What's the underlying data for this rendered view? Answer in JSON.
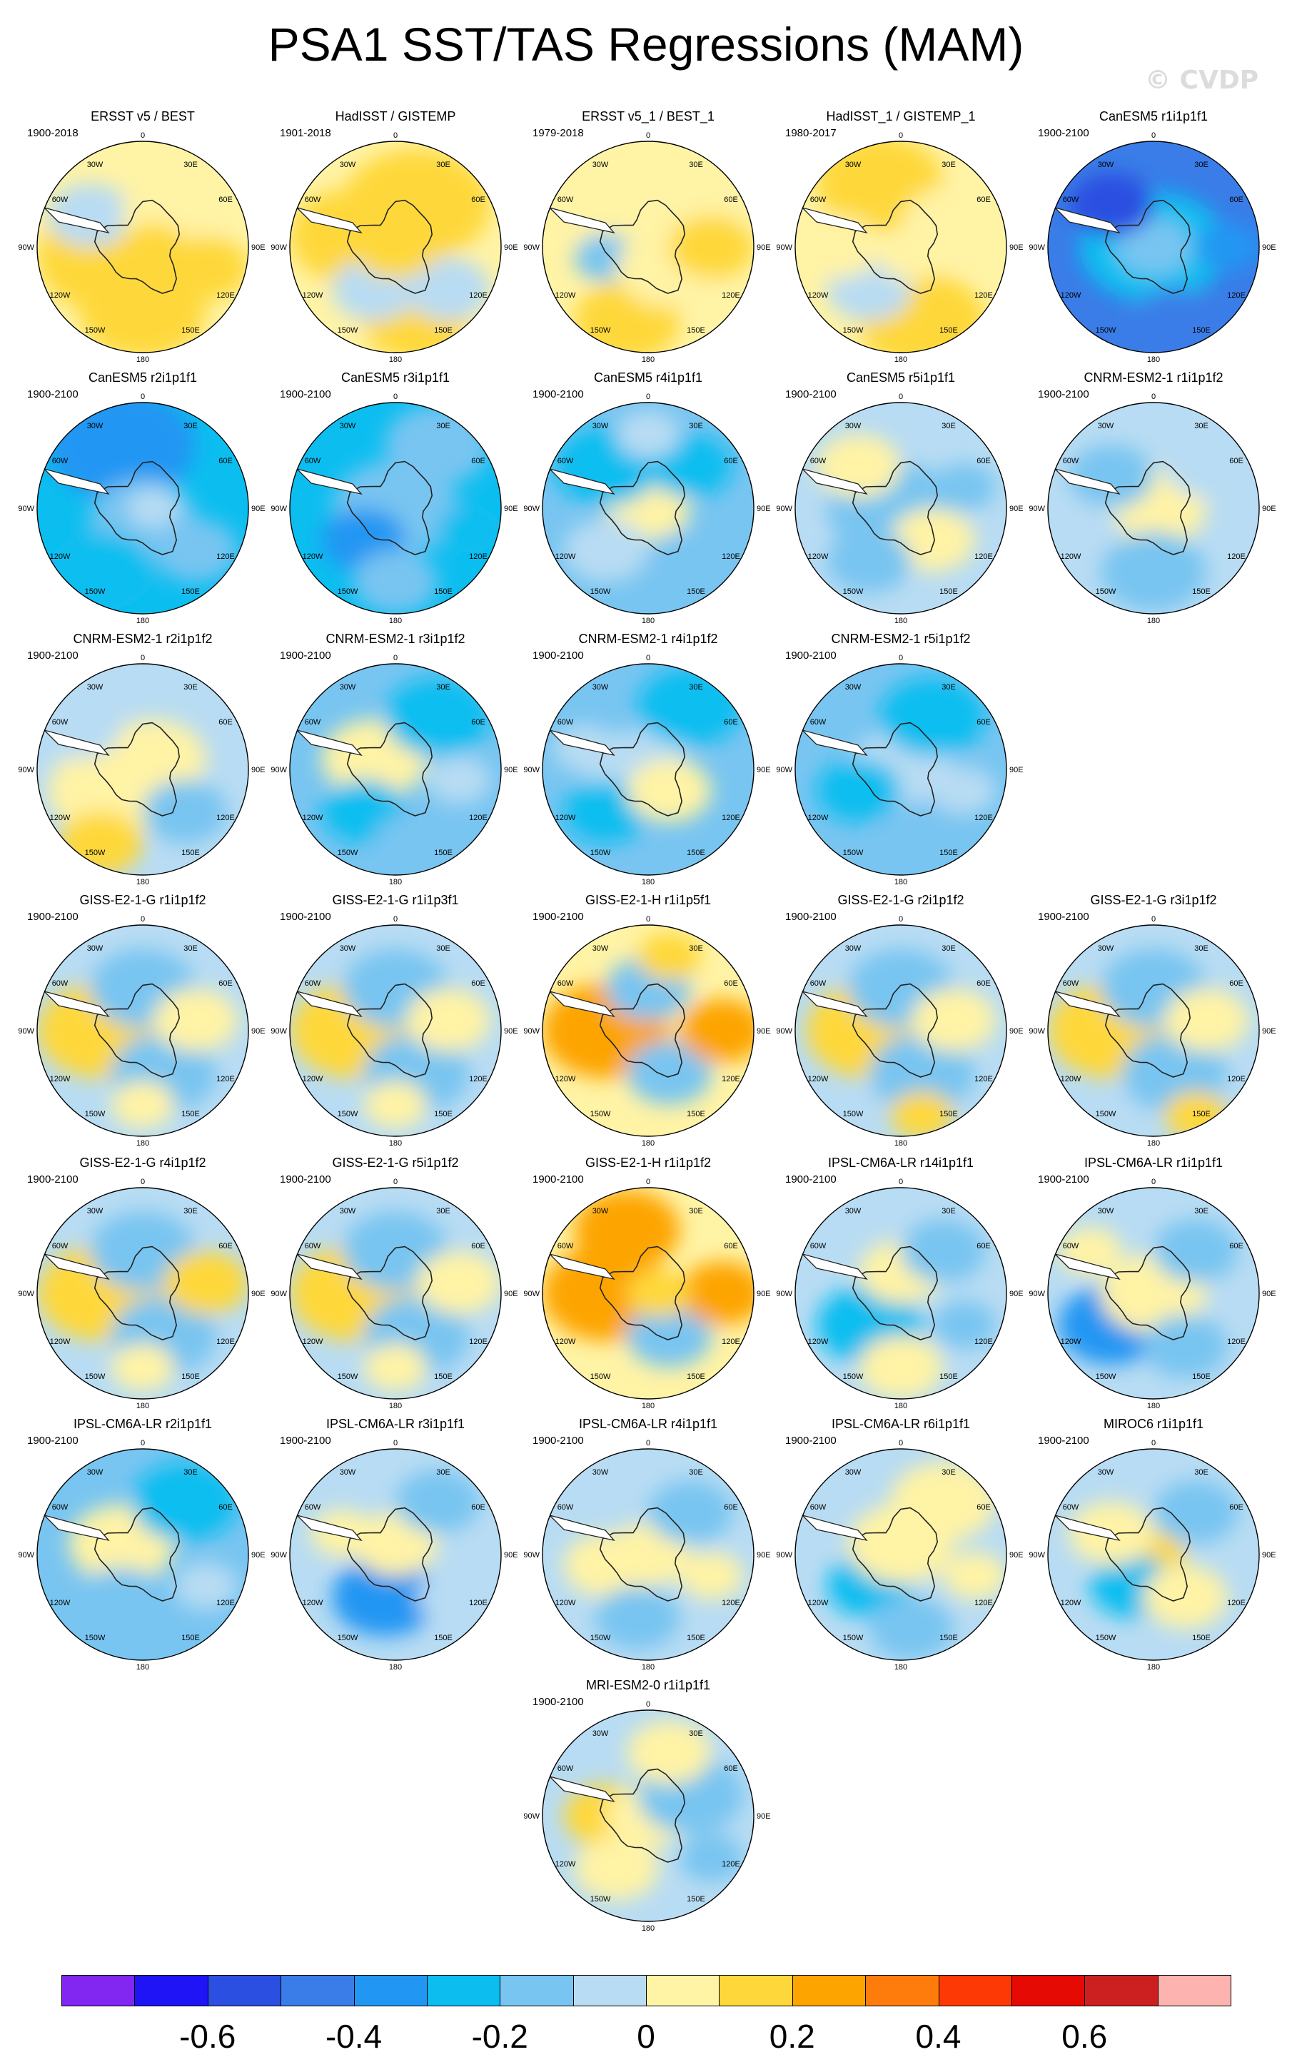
{
  "title": "PSA1 SST/TAS Regressions (MAM)",
  "watermark": "© CVDP",
  "lon_labels": {
    "top": "0",
    "upper_right": "30E",
    "right_high": "60E",
    "right": "90E",
    "right_low": "120E",
    "lower_right": "150E",
    "bottom": "180",
    "lower_left": "150W",
    "left_low": "120W",
    "left": "90W",
    "left_high": "60W",
    "upper_left": "30W"
  },
  "colors": {
    "levels": [
      "#8226f2",
      "#1e14f5",
      "#2b50e1",
      "#3a7de8",
      "#2196f3",
      "#0cbef0",
      "#78c5f1",
      "#b8dcf3",
      "#fff3a5",
      "#fed83a",
      "#fda401",
      "#fd7c0b",
      "#fd3a06",
      "#e60a05",
      "#cc2020",
      "#fdb3b0"
    ],
    "land_outline": "#222222",
    "ocean_frame": "#000000"
  },
  "colorbar": {
    "tick_labels": [
      "-0.6",
      "-0.4",
      "-0.2",
      "0",
      "0.2",
      "0.4",
      "0.6"
    ],
    "tick_positions": [
      2,
      4,
      6,
      8,
      10,
      12,
      14
    ]
  },
  "panels": [
    {
      "title": "ERSST v5 / BEST",
      "years": "1900-2018",
      "base": 8,
      "features": [
        [
          0.35,
          0.55,
          0.35,
          9
        ],
        [
          0.5,
          0.8,
          0.3,
          9
        ],
        [
          0.25,
          0.35,
          0.2,
          7
        ],
        [
          0.65,
          0.35,
          0.25,
          8
        ],
        [
          0.8,
          0.6,
          0.2,
          9
        ],
        [
          0.55,
          0.5,
          0.15,
          9
        ]
      ]
    },
    {
      "title": "HadISST / GISTEMP",
      "years": "1901-2018",
      "base": 8,
      "features": [
        [
          0.6,
          0.3,
          0.35,
          9
        ],
        [
          0.3,
          0.45,
          0.3,
          9
        ],
        [
          0.6,
          0.85,
          0.25,
          9
        ],
        [
          0.75,
          0.7,
          0.2,
          7
        ],
        [
          0.4,
          0.7,
          0.2,
          7
        ],
        [
          0.5,
          0.5,
          0.2,
          9
        ]
      ]
    },
    {
      "title": "ERSST v5_1 / BEST_1",
      "years": "1979-2018",
      "base": 8,
      "features": [
        [
          0.3,
          0.3,
          0.3,
          8
        ],
        [
          0.7,
          0.3,
          0.3,
          8
        ],
        [
          0.4,
          0.85,
          0.25,
          9
        ],
        [
          0.3,
          0.55,
          0.15,
          6
        ],
        [
          0.6,
          0.6,
          0.25,
          8
        ],
        [
          0.8,
          0.5,
          0.2,
          9
        ]
      ]
    },
    {
      "title": "HadISST_1 / GISTEMP_1",
      "years": "1980-2017",
      "base": 8,
      "features": [
        [
          0.4,
          0.2,
          0.3,
          9
        ],
        [
          0.75,
          0.4,
          0.25,
          8
        ],
        [
          0.6,
          0.85,
          0.3,
          9
        ],
        [
          0.35,
          0.7,
          0.2,
          7
        ],
        [
          0.2,
          0.5,
          0.2,
          8
        ],
        [
          0.55,
          0.55,
          0.15,
          8
        ]
      ]
    },
    {
      "title": "CanESM5 r1i1p1f1",
      "years": "1900-2100",
      "base": 3,
      "features": [
        [
          0.5,
          0.5,
          0.35,
          5
        ],
        [
          0.5,
          0.5,
          0.18,
          6
        ],
        [
          0.3,
          0.3,
          0.2,
          2
        ],
        [
          0.6,
          0.85,
          0.2,
          3
        ],
        [
          0.85,
          0.5,
          0.15,
          4
        ]
      ]
    },
    {
      "title": "CanESM5 r2i1p1f1",
      "years": "1900-2100",
      "base": 5,
      "features": [
        [
          0.4,
          0.2,
          0.35,
          4
        ],
        [
          0.5,
          0.55,
          0.25,
          6
        ],
        [
          0.3,
          0.8,
          0.25,
          5
        ],
        [
          0.75,
          0.7,
          0.2,
          6
        ],
        [
          0.55,
          0.5,
          0.12,
          7
        ]
      ]
    },
    {
      "title": "CanESM5 r3i1p1f1",
      "years": "1900-2100",
      "base": 5,
      "features": [
        [
          0.5,
          0.5,
          0.3,
          6
        ],
        [
          0.35,
          0.65,
          0.2,
          4
        ],
        [
          0.7,
          0.2,
          0.25,
          6
        ],
        [
          0.85,
          0.6,
          0.15,
          5
        ],
        [
          0.5,
          0.85,
          0.2,
          6
        ]
      ]
    },
    {
      "title": "CanESM5 r4i1p1f1",
      "years": "1900-2100",
      "base": 6,
      "features": [
        [
          0.5,
          0.5,
          0.2,
          8
        ],
        [
          0.3,
          0.3,
          0.25,
          5
        ],
        [
          0.7,
          0.3,
          0.2,
          5
        ],
        [
          0.3,
          0.7,
          0.2,
          7
        ],
        [
          0.7,
          0.75,
          0.2,
          6
        ],
        [
          0.5,
          0.15,
          0.15,
          7
        ]
      ]
    },
    {
      "title": "CanESM5 r5i1p1f1",
      "years": "1900-2100",
      "base": 7,
      "features": [
        [
          0.45,
          0.5,
          0.3,
          6
        ],
        [
          0.3,
          0.3,
          0.2,
          8
        ],
        [
          0.65,
          0.65,
          0.2,
          8
        ],
        [
          0.35,
          0.75,
          0.2,
          6
        ],
        [
          0.8,
          0.4,
          0.15,
          6
        ]
      ]
    },
    {
      "title": "CNRM-ESM2-1 r1i1p1f2",
      "years": "1900-2100",
      "base": 7,
      "features": [
        [
          0.5,
          0.5,
          0.25,
          8
        ],
        [
          0.3,
          0.35,
          0.2,
          6
        ],
        [
          0.5,
          0.8,
          0.25,
          6
        ],
        [
          0.75,
          0.3,
          0.2,
          7
        ],
        [
          0.2,
          0.6,
          0.15,
          7
        ]
      ]
    },
    {
      "title": "CNRM-ESM2-1 r2i1p1f2",
      "years": "1900-2100",
      "base": 7,
      "features": [
        [
          0.35,
          0.6,
          0.3,
          8
        ],
        [
          0.3,
          0.85,
          0.2,
          9
        ],
        [
          0.55,
          0.45,
          0.25,
          8
        ],
        [
          0.7,
          0.7,
          0.2,
          6
        ],
        [
          0.2,
          0.3,
          0.2,
          7
        ]
      ]
    },
    {
      "title": "CNRM-ESM2-1 r3i1p1f2",
      "years": "1900-2100",
      "base": 6,
      "features": [
        [
          0.4,
          0.45,
          0.25,
          8
        ],
        [
          0.35,
          0.7,
          0.2,
          5
        ],
        [
          0.7,
          0.25,
          0.25,
          5
        ],
        [
          0.6,
          0.85,
          0.2,
          6
        ],
        [
          0.8,
          0.55,
          0.15,
          7
        ]
      ]
    },
    {
      "title": "CNRM-ESM2-1 r4i1p1f2",
      "years": "1900-2100",
      "base": 6,
      "features": [
        [
          0.45,
          0.5,
          0.25,
          7
        ],
        [
          0.3,
          0.7,
          0.2,
          5
        ],
        [
          0.7,
          0.2,
          0.25,
          5
        ],
        [
          0.6,
          0.6,
          0.2,
          8
        ],
        [
          0.2,
          0.4,
          0.15,
          7
        ]
      ]
    },
    {
      "title": "CNRM-ESM2-1 r5i1p1f2",
      "years": "1900-2100",
      "base": 6,
      "features": [
        [
          0.5,
          0.5,
          0.25,
          7
        ],
        [
          0.3,
          0.6,
          0.2,
          5
        ],
        [
          0.65,
          0.25,
          0.25,
          5
        ],
        [
          0.6,
          0.8,
          0.2,
          6
        ],
        [
          0.8,
          0.6,
          0.15,
          7
        ]
      ]
    },
    {
      "title": "GISS-E2-1-G r1i1p1f2",
      "years": "1900-2100",
      "base": 7,
      "features": [
        [
          0.3,
          0.5,
          0.2,
          11
        ],
        [
          0.3,
          0.5,
          0.3,
          9
        ],
        [
          0.5,
          0.3,
          0.25,
          6
        ],
        [
          0.6,
          0.7,
          0.25,
          6
        ],
        [
          0.75,
          0.45,
          0.2,
          8
        ],
        [
          0.5,
          0.85,
          0.15,
          8
        ]
      ]
    },
    {
      "title": "GISS-E2-1-G r1i1p3f1",
      "years": "1900-2100",
      "base": 7,
      "features": [
        [
          0.3,
          0.5,
          0.2,
          10
        ],
        [
          0.3,
          0.5,
          0.3,
          9
        ],
        [
          0.5,
          0.3,
          0.25,
          6
        ],
        [
          0.6,
          0.7,
          0.25,
          6
        ],
        [
          0.75,
          0.45,
          0.2,
          8
        ],
        [
          0.5,
          0.85,
          0.15,
          8
        ]
      ]
    },
    {
      "title": "GISS-E2-1-H r1i1p5f1",
      "years": "1900-2100",
      "base": 8,
      "features": [
        [
          0.25,
          0.55,
          0.2,
          11
        ],
        [
          0.3,
          0.5,
          0.3,
          10
        ],
        [
          0.5,
          0.3,
          0.2,
          6
        ],
        [
          0.6,
          0.7,
          0.2,
          6
        ],
        [
          0.85,
          0.5,
          0.2,
          10
        ],
        [
          0.6,
          0.15,
          0.15,
          9
        ]
      ]
    },
    {
      "title": "GISS-E2-1-G r2i1p1f2",
      "years": "1900-2100",
      "base": 7,
      "features": [
        [
          0.3,
          0.5,
          0.2,
          11
        ],
        [
          0.35,
          0.5,
          0.3,
          9
        ],
        [
          0.5,
          0.3,
          0.25,
          6
        ],
        [
          0.6,
          0.7,
          0.25,
          6
        ],
        [
          0.75,
          0.45,
          0.2,
          8
        ],
        [
          0.6,
          0.9,
          0.15,
          9
        ]
      ]
    },
    {
      "title": "GISS-E2-1-G r3i1p1f2",
      "years": "1900-2100",
      "base": 7,
      "features": [
        [
          0.3,
          0.45,
          0.2,
          10
        ],
        [
          0.3,
          0.5,
          0.3,
          9
        ],
        [
          0.5,
          0.3,
          0.25,
          6
        ],
        [
          0.6,
          0.7,
          0.25,
          6
        ],
        [
          0.75,
          0.45,
          0.2,
          8
        ],
        [
          0.7,
          0.9,
          0.15,
          9
        ]
      ]
    },
    {
      "title": "GISS-E2-1-G r4i1p1f2",
      "years": "1900-2100",
      "base": 7,
      "features": [
        [
          0.3,
          0.5,
          0.2,
          10
        ],
        [
          0.3,
          0.5,
          0.3,
          9
        ],
        [
          0.5,
          0.3,
          0.25,
          6
        ],
        [
          0.6,
          0.7,
          0.25,
          6
        ],
        [
          0.8,
          0.45,
          0.2,
          9
        ],
        [
          0.5,
          0.85,
          0.15,
          8
        ]
      ]
    },
    {
      "title": "GISS-E2-1-G r5i1p1f2",
      "years": "1900-2100",
      "base": 7,
      "features": [
        [
          0.3,
          0.5,
          0.2,
          10
        ],
        [
          0.3,
          0.5,
          0.3,
          9
        ],
        [
          0.5,
          0.3,
          0.25,
          6
        ],
        [
          0.6,
          0.7,
          0.25,
          6
        ],
        [
          0.8,
          0.45,
          0.2,
          8
        ],
        [
          0.5,
          0.85,
          0.15,
          8
        ]
      ]
    },
    {
      "title": "GISS-E2-1-H r1i1p1f2",
      "years": "1900-2100",
      "base": 8,
      "features": [
        [
          0.25,
          0.55,
          0.2,
          12
        ],
        [
          0.3,
          0.5,
          0.3,
          10
        ],
        [
          0.4,
          0.2,
          0.25,
          10
        ],
        [
          0.6,
          0.7,
          0.2,
          6
        ],
        [
          0.85,
          0.5,
          0.2,
          10
        ],
        [
          0.55,
          0.5,
          0.15,
          9
        ]
      ]
    },
    {
      "title": "IPSL-CM6A-LR r14i1p1f1",
      "years": "1900-2100",
      "base": 7,
      "features": [
        [
          0.35,
          0.65,
          0.25,
          5
        ],
        [
          0.5,
          0.4,
          0.2,
          8
        ],
        [
          0.7,
          0.3,
          0.2,
          6
        ],
        [
          0.5,
          0.85,
          0.2,
          8
        ],
        [
          0.8,
          0.65,
          0.15,
          6
        ]
      ]
    },
    {
      "title": "IPSL-CM6A-LR r1i1p1f1",
      "years": "1900-2100",
      "base": 7,
      "features": [
        [
          0.3,
          0.65,
          0.25,
          4
        ],
        [
          0.5,
          0.5,
          0.25,
          8
        ],
        [
          0.7,
          0.3,
          0.2,
          6
        ],
        [
          0.65,
          0.75,
          0.2,
          6
        ],
        [
          0.2,
          0.3,
          0.15,
          8
        ]
      ]
    },
    {
      "title": "IPSL-CM6A-LR r2i1p1f1",
      "years": "1900-2100",
      "base": 6,
      "features": [
        [
          0.4,
          0.45,
          0.25,
          8
        ],
        [
          0.7,
          0.25,
          0.25,
          5
        ],
        [
          0.4,
          0.75,
          0.25,
          6
        ],
        [
          0.8,
          0.65,
          0.15,
          7
        ]
      ]
    },
    {
      "title": "IPSL-CM6A-LR r3i1p1f1",
      "years": "1900-2100",
      "base": 7,
      "features": [
        [
          0.45,
          0.7,
          0.25,
          4
        ],
        [
          0.5,
          0.45,
          0.2,
          8
        ],
        [
          0.7,
          0.25,
          0.2,
          6
        ],
        [
          0.25,
          0.4,
          0.15,
          8
        ],
        [
          0.75,
          0.7,
          0.15,
          7
        ]
      ]
    },
    {
      "title": "IPSL-CM6A-LR r4i1p1f1",
      "years": "1900-2100",
      "base": 7,
      "features": [
        [
          0.3,
          0.55,
          0.2,
          8
        ],
        [
          0.5,
          0.5,
          0.2,
          8
        ],
        [
          0.7,
          0.3,
          0.2,
          6
        ],
        [
          0.45,
          0.8,
          0.2,
          6
        ],
        [
          0.8,
          0.6,
          0.15,
          8
        ]
      ]
    },
    {
      "title": "IPSL-CM6A-LR r6i1p1f1",
      "years": "1900-2100",
      "base": 7,
      "features": [
        [
          0.35,
          0.65,
          0.2,
          5
        ],
        [
          0.5,
          0.45,
          0.25,
          8
        ],
        [
          0.7,
          0.25,
          0.25,
          8
        ],
        [
          0.55,
          0.85,
          0.2,
          6
        ],
        [
          0.85,
          0.6,
          0.15,
          8
        ]
      ]
    },
    {
      "title": "MIROC6 r1i1p1f1",
      "years": "1900-2100",
      "base": 7,
      "features": [
        [
          0.5,
          0.5,
          0.15,
          9
        ],
        [
          0.4,
          0.65,
          0.2,
          5
        ],
        [
          0.3,
          0.4,
          0.2,
          8
        ],
        [
          0.7,
          0.3,
          0.2,
          6
        ],
        [
          0.65,
          0.7,
          0.2,
          8
        ]
      ]
    },
    {
      "title": "MRI-ESM2-0 r1i1p1f1",
      "years": "1900-2100",
      "base": 7,
      "features": [
        [
          0.3,
          0.5,
          0.2,
          9
        ],
        [
          0.5,
          0.5,
          0.2,
          8
        ],
        [
          0.35,
          0.75,
          0.2,
          8
        ],
        [
          0.7,
          0.4,
          0.25,
          6
        ],
        [
          0.6,
          0.2,
          0.2,
          8
        ],
        [
          0.8,
          0.7,
          0.15,
          6
        ]
      ]
    }
  ]
}
